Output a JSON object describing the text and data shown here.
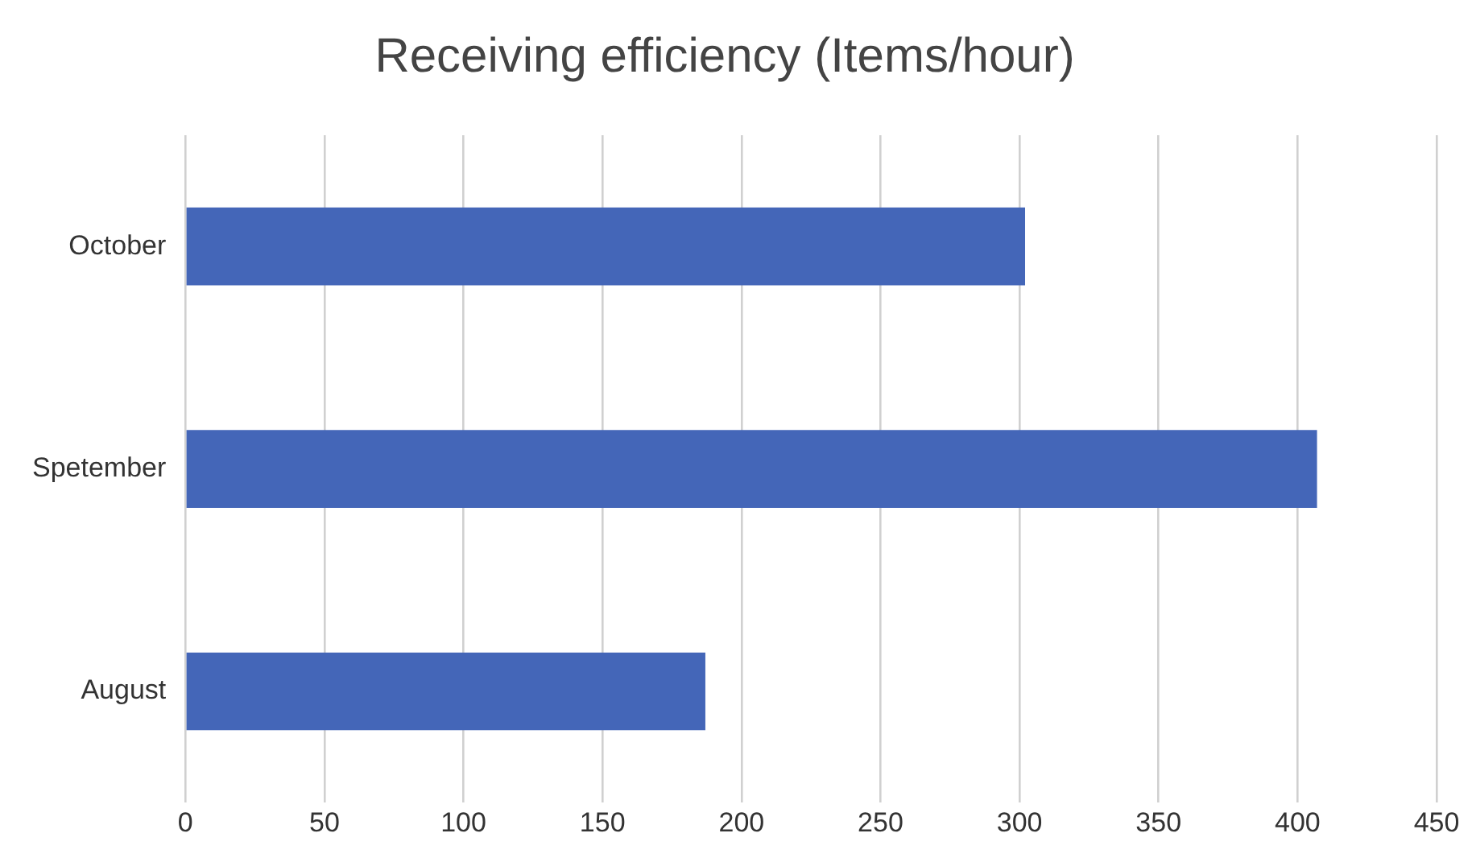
{
  "chart_data": {
    "type": "bar",
    "orientation": "horizontal",
    "title": "Receiving efficiency (Items/hour)",
    "categories": [
      "October",
      "Spetember",
      "August"
    ],
    "values": [
      302,
      407,
      187
    ],
    "color": "#4466b8",
    "xlim": [
      0,
      450
    ],
    "xticks": [
      0,
      50,
      100,
      150,
      200,
      250,
      300,
      350,
      400,
      450
    ],
    "grid": "x",
    "legend": false
  }
}
